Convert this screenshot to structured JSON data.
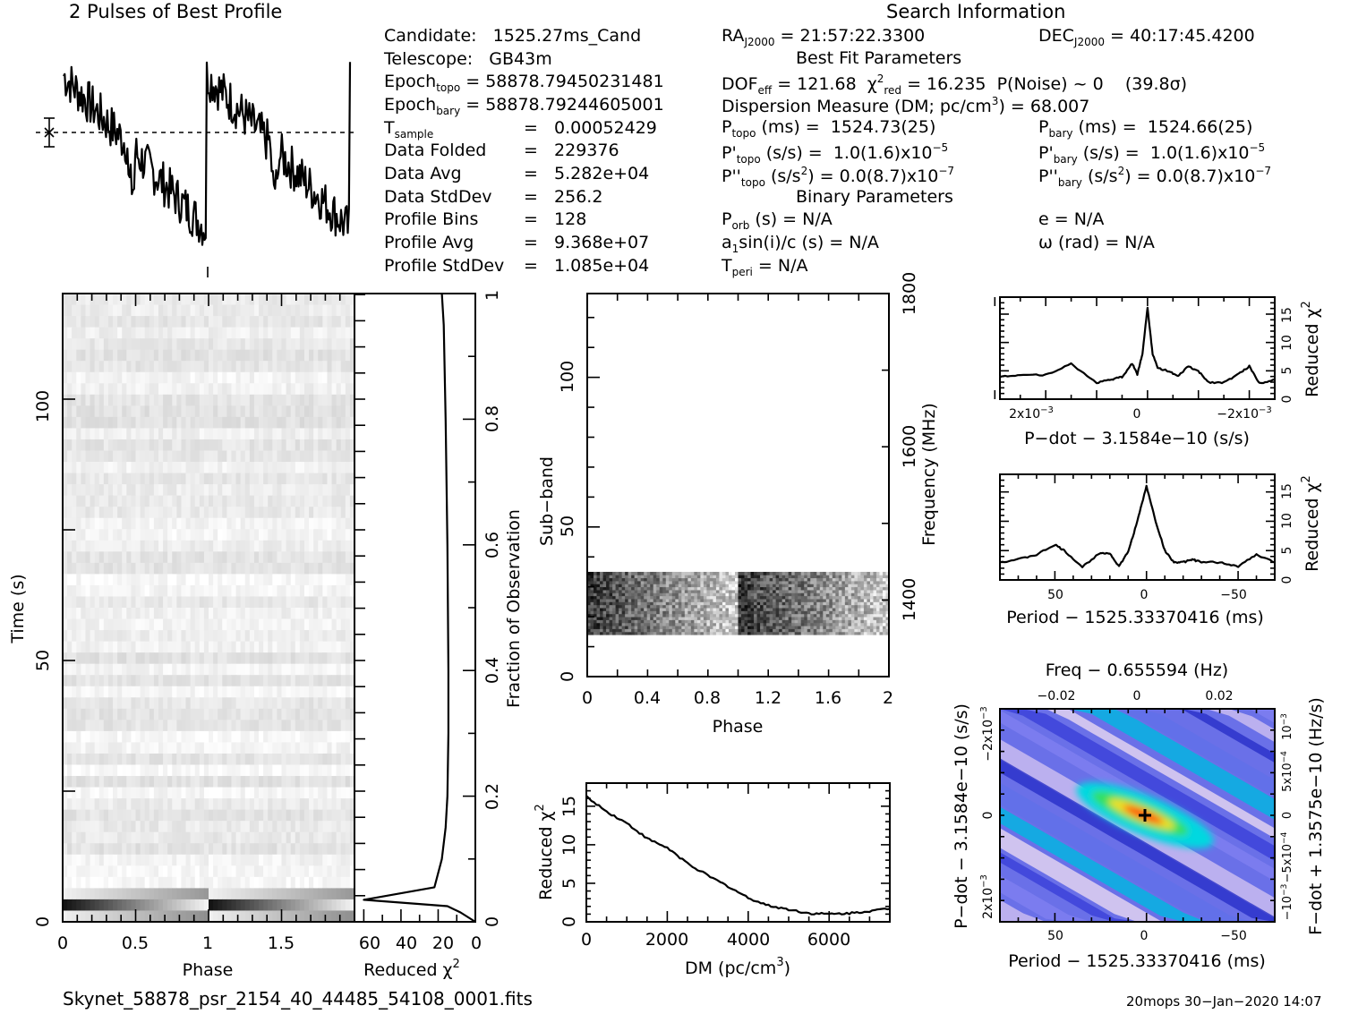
{
  "header": {
    "profile_title": "2 Pulses of Best Profile",
    "search_title": "Search Information",
    "best_fit_title": "Best Fit Parameters",
    "binary_title": "Binary Parameters"
  },
  "candidate_info": {
    "candidate_label": "Candidate:",
    "candidate": "1525.27ms_Cand",
    "telescope_label": "Telescope:",
    "telescope": "GB43m",
    "epoch_topo": "58878.79450231481",
    "epoch_bary": "58878.79244605001",
    "t_sample": "0.00052429",
    "data_folded": "229376",
    "data_avg": "5.282e+04",
    "data_stddev": "256.2",
    "profile_bins": "128",
    "profile_avg": "9.368e+07",
    "profile_stddev": "1.085e+04"
  },
  "search_info": {
    "ra_j2000": "21:57:22.3300",
    "dec_j2000": "40:17:45.4200",
    "dof_eff": "121.68",
    "chi2_red": "16.235",
    "p_noise": "0",
    "sigma": "(39.8σ)",
    "dm": "68.007",
    "p_topo_ms": "1524.73(25)",
    "p_bary_ms": "1524.66(25)",
    "pd_topo": "1.0(1.6)x10",
    "pd_bary": "1.0(1.6)x10",
    "pd_exp": "−5",
    "pdd_topo": "0.0(8.7)x10",
    "pdd_bary": "0.0(8.7)x10",
    "pdd_exp": "−7",
    "p_orb": "N/A",
    "e": "N/A",
    "a1sini": "N/A",
    "omega": "N/A",
    "t_peri": "N/A"
  },
  "footer": {
    "filename": "Skynet_58878_psr_2154_40_44485_54108_0001.fits",
    "stamp": "20mops 30−Jan−2020 14:07"
  },
  "colors": {
    "line": "#000000",
    "cmap_low": "#3030d0",
    "cmap_mid": "#00e0e0",
    "cmap_high": "#ff3000"
  },
  "chart_data": [
    {
      "id": "profile",
      "type": "line",
      "title": "2 Pulses of Best Profile",
      "xlabel": "",
      "ylabel": "",
      "xlim": [
        0,
        2
      ],
      "description": "Pulse profile shown twice; sawtooth-like shape with sharp rise near phase 0 and 1"
    },
    {
      "id": "time-phase",
      "type": "heatmap",
      "xlabel": "Phase",
      "ylabel": "Time (s)",
      "xlim": [
        0,
        2
      ],
      "ylim": [
        0,
        122
      ],
      "xticks": [
        "0",
        "0.5",
        "1",
        "1.5"
      ],
      "yticks": [
        "0",
        "50",
        "100"
      ]
    },
    {
      "id": "chi2-vs-time",
      "type": "line",
      "xlabel": "Reduced χ2",
      "ylabel": "Fraction of Observation",
      "xlim": [
        65,
        0
      ],
      "ylim": [
        0,
        1
      ],
      "xticks": [
        "60",
        "40",
        "20",
        "0"
      ],
      "yticks": [
        "0",
        "0.2",
        "0.4",
        "0.6",
        "0.8",
        "1"
      ],
      "x": [
        0,
        8,
        15,
        60,
        22,
        18,
        16,
        15,
        14.5,
        14.5,
        15,
        16,
        17,
        18
      ],
      "y": [
        0,
        0.015,
        0.025,
        0.035,
        0.055,
        0.1,
        0.15,
        0.2,
        0.3,
        0.4,
        0.6,
        0.8,
        0.95,
        1.0
      ]
    },
    {
      "id": "subband-phase",
      "type": "heatmap",
      "xlabel": "Phase",
      "ylabel": "Sub−band",
      "y2label": "Frequency (MHz)",
      "xlim": [
        0,
        2
      ],
      "ylim": [
        0,
        128
      ],
      "y2lim": [
        1300,
        1800
      ],
      "xticks": [
        "0",
        "0.4",
        "0.8",
        "1.2",
        "1.6",
        "2"
      ],
      "yticks": [
        "0",
        "50",
        "100"
      ],
      "y2ticks": [
        "1400",
        "1600",
        "1800"
      ],
      "signal_band": [
        14,
        35
      ]
    },
    {
      "id": "dm-chi2",
      "type": "line",
      "xlabel": "DM (pc/cm3)",
      "ylabel": "Reduced χ2",
      "xlim": [
        0,
        7500
      ],
      "ylim": [
        0,
        18
      ],
      "xticks": [
        "0",
        "2000",
        "4000",
        "6000"
      ],
      "yticks": [
        "0",
        "5",
        "10",
        "15"
      ],
      "x": [
        0,
        500,
        1000,
        1500,
        2000,
        2500,
        3000,
        3500,
        4000,
        4500,
        5000,
        5500,
        6000,
        6500,
        7000,
        7500
      ],
      "y": [
        16.3,
        14.3,
        12.8,
        10.8,
        9.6,
        7.6,
        6.0,
        4.6,
        3.1,
        2.1,
        1.6,
        1.1,
        1.0,
        1.1,
        1.4,
        1.7
      ]
    },
    {
      "id": "pdot-chi2",
      "type": "line",
      "xlabel": "P−dot − 3.1584e−10 (s/s)",
      "ylabel": "Reduced χ2",
      "xlim": [
        0.0029,
        -0.0025
      ],
      "ylim": [
        0,
        18
      ],
      "xticks": [
        "2x10−3",
        "0",
        "−2x10−3"
      ],
      "yticks": [
        "0",
        "5",
        "10",
        "15"
      ],
      "x": [
        0.0029,
        0.0025,
        0.002,
        0.0015,
        0.001,
        0.0007,
        0.0005,
        0.0003,
        0.0002,
        0.0001,
        0,
        -0.0001,
        -0.0002,
        -0.0004,
        -0.0006,
        -0.0008,
        -0.001,
        -0.0012,
        -0.0015,
        -0.0018,
        -0.002,
        -0.0022,
        -0.0025
      ],
      "y": [
        4.0,
        4.3,
        4.3,
        6.2,
        2.9,
        3.5,
        3.9,
        6.3,
        4.4,
        8,
        16.2,
        8,
        5.5,
        5.0,
        4.0,
        5.8,
        4.9,
        3.0,
        2.9,
        4.5,
        5.8,
        2.8,
        3.5
      ]
    },
    {
      "id": "period-chi2",
      "type": "line",
      "xlabel": "Period − 1525.33370416 (ms)",
      "ylabel": "Reduced χ2",
      "xlim": [
        80,
        -70
      ],
      "ylim": [
        0,
        18
      ],
      "xticks": [
        "50",
        "0",
        "−50"
      ],
      "yticks": [
        "0",
        "5",
        "10",
        "15"
      ],
      "x": [
        80,
        70,
        60,
        50,
        45,
        35,
        25,
        20,
        15,
        10,
        5,
        0,
        -5,
        -10,
        -15,
        -20,
        -25,
        -30,
        -40,
        -50,
        -60,
        -70
      ],
      "y": [
        3.0,
        3.5,
        4.3,
        6.0,
        5.0,
        2.2,
        4.7,
        4.5,
        2.3,
        4.8,
        10,
        16.0,
        10,
        5.0,
        3.0,
        3.0,
        3.5,
        3.0,
        3.0,
        2.3,
        4.3,
        3.0
      ]
    },
    {
      "id": "p-pdot-plane",
      "type": "heatmap",
      "title": "Freq − 0.655594 (Hz)",
      "xlabel": "Period − 1525.33370416 (ms)",
      "ylabel": "P−dot − 3.1584e−10 (s/s)",
      "y2label": "F−dot + 1.3575e−10 (Hz/s)",
      "xlim": [
        80,
        -70
      ],
      "ylim": [
        0.0026,
        -0.0026
      ],
      "xticks": [
        "50",
        "0",
        "−50"
      ],
      "x2ticks": [
        "−0.02",
        "0",
        "0.02"
      ],
      "yticks": [
        "2x10−3",
        "0",
        "−2x10−3"
      ],
      "y2ticks": [
        "−10−3",
        "−5x10−4",
        "0",
        "5x10−4",
        "10−3"
      ],
      "best_fit": [
        0,
        0
      ]
    }
  ]
}
